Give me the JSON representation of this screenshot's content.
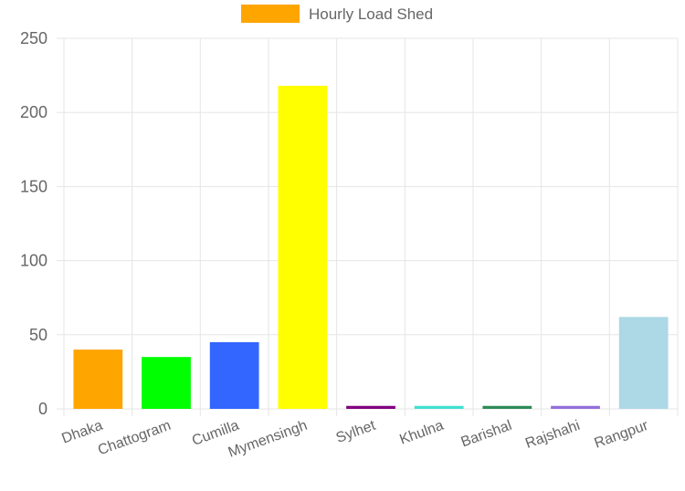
{
  "chart_data": {
    "type": "bar",
    "legend": {
      "label": "Hourly Load Shed",
      "color": "#FFA500",
      "position": "top-center"
    },
    "categories": [
      "Dhaka",
      "Chattogram",
      "Cumilla",
      "Mymensingh",
      "Sylhet",
      "Khulna",
      "Barishal",
      "Rajshahi",
      "Rangpur"
    ],
    "series": [
      {
        "name": "Hourly Load Shed",
        "values": [
          40,
          35,
          45,
          218,
          2,
          2,
          2,
          2,
          62
        ],
        "colors": [
          "#FFA500",
          "#00FF00",
          "#3366FF",
          "#FFFF00",
          "#800080",
          "#40E0D0",
          "#2E8B57",
          "#9370DB",
          "#ADD8E6"
        ]
      }
    ],
    "ylim": [
      0,
      250
    ],
    "yticks": [
      0,
      50,
      100,
      150,
      200,
      250
    ],
    "grid": true,
    "grid_color": "#e5e5e5",
    "axis_color": "#666666"
  }
}
